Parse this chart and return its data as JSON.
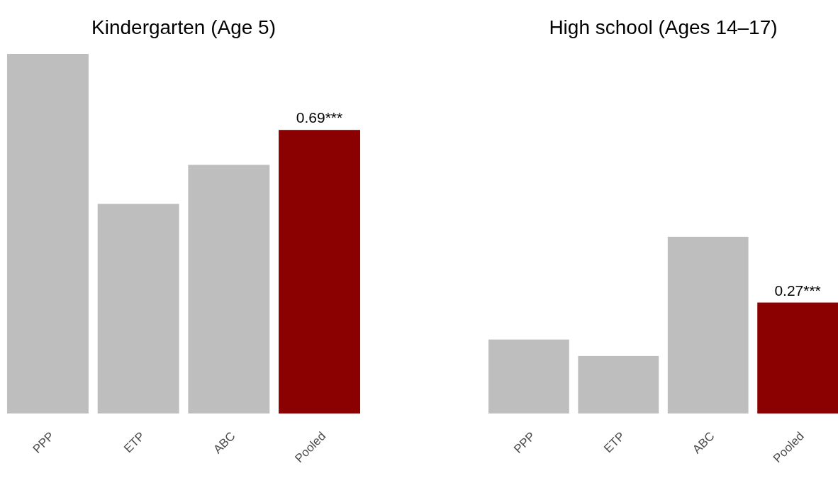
{
  "chart_data": [
    {
      "type": "bar",
      "title": "Kindergarten (Age 5)",
      "categories": [
        "PPP",
        "ETP",
        "ABC",
        "Pooled"
      ],
      "values": [
        0.875,
        0.51,
        0.605,
        0.69
      ],
      "colors": [
        "#bebebe",
        "#bebebe",
        "#bebebe",
        "#8b0000"
      ],
      "value_labels": [
        null,
        null,
        null,
        "0.69***"
      ]
    },
    {
      "type": "bar",
      "title": "High school (Ages 14–17)",
      "categories": [
        "PPP",
        "ETP",
        "ABC",
        "Pooled"
      ],
      "values": [
        0.18,
        0.14,
        0.43,
        0.27
      ],
      "colors": [
        "#bebebe",
        "#bebebe",
        "#bebebe",
        "#8b0000"
      ],
      "value_labels": [
        null,
        null,
        null,
        "0.27***"
      ]
    }
  ]
}
